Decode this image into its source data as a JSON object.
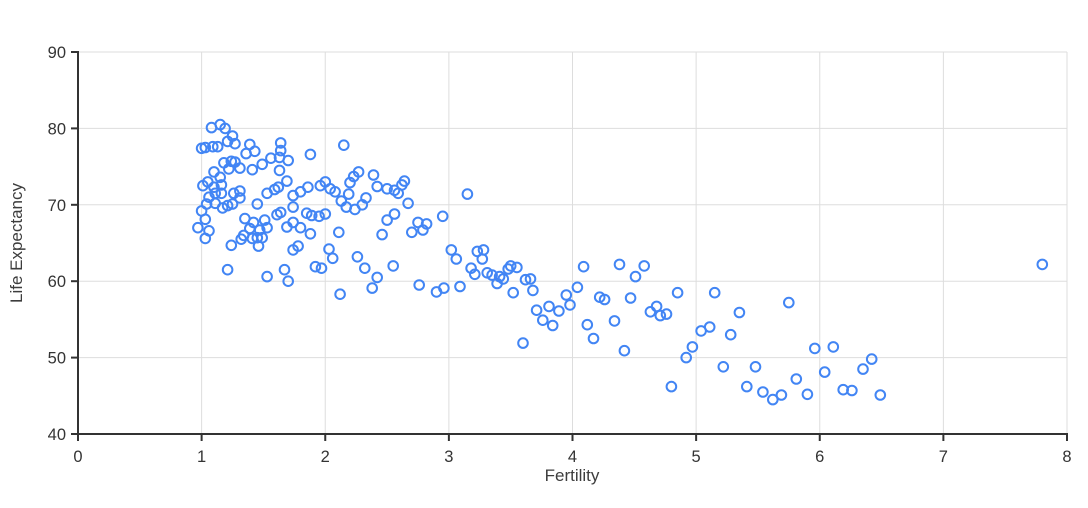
{
  "chart_data": {
    "type": "scatter",
    "title": "",
    "xlabel": "Fertility",
    "ylabel": "Life Expectancy",
    "xlim": [
      0,
      8
    ],
    "ylim": [
      40,
      90
    ],
    "x_ticks": [
      0,
      1,
      2,
      3,
      4,
      5,
      6,
      7,
      8
    ],
    "y_ticks": [
      40,
      50,
      60,
      70,
      80,
      90
    ],
    "grid": true,
    "legend": "none",
    "marker": {
      "shape": "open-circle",
      "color": "#4285f4",
      "fill": "none",
      "radius": 4.8,
      "stroke_width": 2
    },
    "colors": {
      "grid": "#dddddd",
      "axis": "#333333",
      "tick_label": "#343434",
      "axis_title": "#3d3d3d",
      "background": "#ffffff"
    },
    "points": [
      [
        0.97,
        67.0
      ],
      [
        1.0,
        77.4
      ],
      [
        1.03,
        77.5
      ],
      [
        1.09,
        77.6
      ],
      [
        1.13,
        77.6
      ],
      [
        1.08,
        80.1
      ],
      [
        1.15,
        80.5
      ],
      [
        1.19,
        80.0
      ],
      [
        1.25,
        79.0
      ],
      [
        1.21,
        78.3
      ],
      [
        1.27,
        78.0
      ],
      [
        1.18,
        75.5
      ],
      [
        1.24,
        75.7
      ],
      [
        1.27,
        75.6
      ],
      [
        1.1,
        74.3
      ],
      [
        1.22,
        74.7
      ],
      [
        1.31,
        74.8
      ],
      [
        1.41,
        74.6
      ],
      [
        1.15,
        73.6
      ],
      [
        1.16,
        72.6
      ],
      [
        1.16,
        71.5
      ],
      [
        1.05,
        73.0
      ],
      [
        1.01,
        72.5
      ],
      [
        1.1,
        72.3
      ],
      [
        1.11,
        71.5
      ],
      [
        1.06,
        71.0
      ],
      [
        1.04,
        70.1
      ],
      [
        1.11,
        70.2
      ],
      [
        1.17,
        69.6
      ],
      [
        1.0,
        69.2
      ],
      [
        1.21,
        69.9
      ],
      [
        1.25,
        70.1
      ],
      [
        1.26,
        71.5
      ],
      [
        1.31,
        71.8
      ],
      [
        1.31,
        70.9
      ],
      [
        1.03,
        68.1
      ],
      [
        1.03,
        65.6
      ],
      [
        1.06,
        66.6
      ],
      [
        1.21,
        61.5
      ],
      [
        1.24,
        64.7
      ],
      [
        1.32,
        65.5
      ],
      [
        1.34,
        66.0
      ],
      [
        1.35,
        68.2
      ],
      [
        1.39,
        66.9
      ],
      [
        1.41,
        65.6
      ],
      [
        1.42,
        67.7
      ],
      [
        1.45,
        65.7
      ],
      [
        1.45,
        70.1
      ],
      [
        1.46,
        64.6
      ],
      [
        1.36,
        76.7
      ],
      [
        1.39,
        77.9
      ],
      [
        1.43,
        77.0
      ],
      [
        1.49,
        75.3
      ],
      [
        1.47,
        66.7
      ],
      [
        1.49,
        65.7
      ],
      [
        1.53,
        67.0
      ],
      [
        1.51,
        68.0
      ],
      [
        1.53,
        71.5
      ],
      [
        1.53,
        60.6
      ],
      [
        1.56,
        76.1
      ],
      [
        1.59,
        72.0
      ],
      [
        1.61,
        68.7
      ],
      [
        1.62,
        72.3
      ],
      [
        1.63,
        76.2
      ],
      [
        1.64,
        78.1
      ],
      [
        1.64,
        77.1
      ],
      [
        1.63,
        74.5
      ],
      [
        1.64,
        69.0
      ],
      [
        1.67,
        61.5
      ],
      [
        1.69,
        73.1
      ],
      [
        1.69,
        67.1
      ],
      [
        1.7,
        75.8
      ],
      [
        1.7,
        60.0
      ],
      [
        1.74,
        67.7
      ],
      [
        1.8,
        67.0
      ],
      [
        1.74,
        69.7
      ],
      [
        1.74,
        64.1
      ],
      [
        1.78,
        64.6
      ],
      [
        1.74,
        71.2
      ],
      [
        1.8,
        71.7
      ],
      [
        1.85,
        68.9
      ],
      [
        1.86,
        72.3
      ],
      [
        1.88,
        76.6
      ],
      [
        1.88,
        66.2
      ],
      [
        1.89,
        68.6
      ],
      [
        1.92,
        61.9
      ],
      [
        1.95,
        68.5
      ],
      [
        1.96,
        72.5
      ],
      [
        1.97,
        61.7
      ],
      [
        2.0,
        73.0
      ],
      [
        2.0,
        68.8
      ],
      [
        2.03,
        64.2
      ],
      [
        2.04,
        72.1
      ],
      [
        2.06,
        63.0
      ],
      [
        2.08,
        71.7
      ],
      [
        2.11,
        66.4
      ],
      [
        2.12,
        58.3
      ],
      [
        2.13,
        70.5
      ],
      [
        2.15,
        77.8
      ],
      [
        2.17,
        69.7
      ],
      [
        2.19,
        71.4
      ],
      [
        2.2,
        72.9
      ],
      [
        2.23,
        73.7
      ],
      [
        2.24,
        69.4
      ],
      [
        2.26,
        63.2
      ],
      [
        2.27,
        74.3
      ],
      [
        2.3,
        70.0
      ],
      [
        2.32,
        61.7
      ],
      [
        2.33,
        70.9
      ],
      [
        2.38,
        59.1
      ],
      [
        2.39,
        73.9
      ],
      [
        2.42,
        72.4
      ],
      [
        2.42,
        60.5
      ],
      [
        2.46,
        66.1
      ],
      [
        2.5,
        72.1
      ],
      [
        2.5,
        68.0
      ],
      [
        2.55,
        62.0
      ],
      [
        2.56,
        71.9
      ],
      [
        2.56,
        68.8
      ],
      [
        2.59,
        71.5
      ],
      [
        2.62,
        72.6
      ],
      [
        2.64,
        73.1
      ],
      [
        2.67,
        70.2
      ],
      [
        2.7,
        66.4
      ],
      [
        2.75,
        67.7
      ],
      [
        2.76,
        59.5
      ],
      [
        2.79,
        66.7
      ],
      [
        2.82,
        67.5
      ],
      [
        2.9,
        58.6
      ],
      [
        2.95,
        68.5
      ],
      [
        2.96,
        59.1
      ],
      [
        3.02,
        64.1
      ],
      [
        3.06,
        62.9
      ],
      [
        3.09,
        59.3
      ],
      [
        3.15,
        71.4
      ],
      [
        3.18,
        61.7
      ],
      [
        3.21,
        60.9
      ],
      [
        3.23,
        63.9
      ],
      [
        3.27,
        62.9
      ],
      [
        3.28,
        64.1
      ],
      [
        3.31,
        61.1
      ],
      [
        3.35,
        60.8
      ],
      [
        3.39,
        59.7
      ],
      [
        3.41,
        60.6
      ],
      [
        3.44,
        60.3
      ],
      [
        3.48,
        61.6
      ],
      [
        3.5,
        62.0
      ],
      [
        3.52,
        58.5
      ],
      [
        3.55,
        61.8
      ],
      [
        3.6,
        51.9
      ],
      [
        3.62,
        60.2
      ],
      [
        3.66,
        60.3
      ],
      [
        3.68,
        58.8
      ],
      [
        3.71,
        56.2
      ],
      [
        3.76,
        54.9
      ],
      [
        3.81,
        56.7
      ],
      [
        3.84,
        54.2
      ],
      [
        3.89,
        56.1
      ],
      [
        3.95,
        58.2
      ],
      [
        3.98,
        56.9
      ],
      [
        4.04,
        59.2
      ],
      [
        4.09,
        61.9
      ],
      [
        4.12,
        54.3
      ],
      [
        4.17,
        52.5
      ],
      [
        4.22,
        57.9
      ],
      [
        4.26,
        57.6
      ],
      [
        4.34,
        54.8
      ],
      [
        4.38,
        62.2
      ],
      [
        4.42,
        50.9
      ],
      [
        4.47,
        57.8
      ],
      [
        4.51,
        60.6
      ],
      [
        4.58,
        62.0
      ],
      [
        4.63,
        56.0
      ],
      [
        4.68,
        56.7
      ],
      [
        4.71,
        55.5
      ],
      [
        4.76,
        55.7
      ],
      [
        4.8,
        46.2
      ],
      [
        4.85,
        58.5
      ],
      [
        4.92,
        50.0
      ],
      [
        4.97,
        51.4
      ],
      [
        5.04,
        53.5
      ],
      [
        5.11,
        54.0
      ],
      [
        5.15,
        58.5
      ],
      [
        5.22,
        48.8
      ],
      [
        5.28,
        53.0
      ],
      [
        5.35,
        55.9
      ],
      [
        5.41,
        46.2
      ],
      [
        5.48,
        48.8
      ],
      [
        5.54,
        45.5
      ],
      [
        5.62,
        44.5
      ],
      [
        5.69,
        45.1
      ],
      [
        5.75,
        57.2
      ],
      [
        5.81,
        47.2
      ],
      [
        5.9,
        45.2
      ],
      [
        5.96,
        51.2
      ],
      [
        6.04,
        48.1
      ],
      [
        6.11,
        51.4
      ],
      [
        6.19,
        45.8
      ],
      [
        6.26,
        45.7
      ],
      [
        6.35,
        48.5
      ],
      [
        6.42,
        49.8
      ],
      [
        6.49,
        45.1
      ],
      [
        7.8,
        62.2
      ]
    ]
  }
}
